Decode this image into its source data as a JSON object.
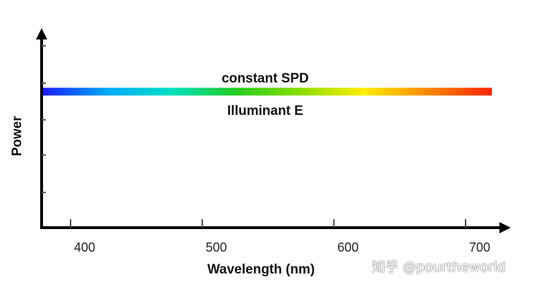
{
  "chart_data": {
    "type": "line",
    "title": "",
    "xlabel": "Wavelength (nm)",
    "ylabel": "Power",
    "x_ticks": [
      400,
      500,
      600,
      700
    ],
    "x_tick_labels": [
      "400",
      "500",
      "600",
      "700"
    ],
    "xlim": [
      370,
      730
    ],
    "ylim": [
      0,
      1
    ],
    "grid": false,
    "series": [
      {
        "x": [
          380,
          720
        ],
        "y": [
          0.75,
          0.75
        ],
        "color_gradient": [
          "#1a1aff",
          "#00aaff",
          "#00e0c0",
          "#22cc22",
          "#88dd00",
          "#ffee00",
          "#ff8800",
          "#ff2200"
        ]
      }
    ],
    "annotations": [
      {
        "text": "constant SPD"
      },
      {
        "text": "Illuminant E"
      }
    ]
  },
  "watermark": {
    "text": "知乎 @pourtheworld"
  }
}
